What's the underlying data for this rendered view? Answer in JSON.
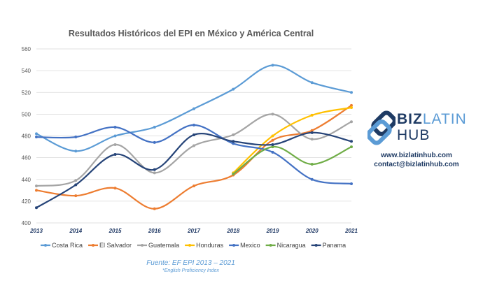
{
  "chart_data": {
    "type": "line",
    "title": "Resultados Históricos del EPI en México y América Central",
    "xlabel": "",
    "ylabel": "",
    "x": [
      "2013",
      "2014",
      "2015",
      "2016",
      "2017",
      "2018",
      "2019",
      "2020",
      "2021"
    ],
    "ylim": [
      400,
      560
    ],
    "yticks": [
      "400",
      "420",
      "440",
      "460",
      "480",
      "500",
      "520",
      "540",
      "560"
    ],
    "grid": true,
    "legend_position": "bottom",
    "series": [
      {
        "name": "Costa Rica",
        "color": "#5b9bd5",
        "values": [
          482,
          466,
          480,
          488,
          505,
          523,
          545,
          529,
          520
        ]
      },
      {
        "name": "El Salvador",
        "color": "#ed7d31",
        "values": [
          430,
          425,
          432,
          413,
          434,
          444,
          476,
          485,
          508
        ]
      },
      {
        "name": "Guatemala",
        "color": "#a5a5a5",
        "values": [
          434,
          439,
          472,
          446,
          471,
          481,
          500,
          477,
          493
        ]
      },
      {
        "name": "Honduras",
        "color": "#ffc000",
        "values": [
          null,
          null,
          null,
          null,
          null,
          446,
          480,
          499,
          506
        ]
      },
      {
        "name": "Mexico",
        "color": "#4472c4",
        "values": [
          479,
          479,
          488,
          474,
          490,
          473,
          465,
          440,
          436
        ]
      },
      {
        "name": "Nicaragua",
        "color": "#70ad47",
        "values": [
          null,
          null,
          null,
          null,
          null,
          445,
          470,
          454,
          470
        ]
      },
      {
        "name": "Panama",
        "color": "#264478",
        "values": [
          414,
          435,
          463,
          449,
          481,
          475,
          472,
          483,
          475
        ]
      }
    ]
  },
  "source": {
    "main": "Fuente: EF EPI 2013 – 2021",
    "note": "*English Proficiency Index"
  },
  "brand": {
    "name_bold": "BIZ",
    "name_light": "LATIN",
    "name_second": "HUB",
    "website": "www.bizlatinhub.com",
    "email": "contact@bizlatinhub.com",
    "primary_color": "#1f3b64",
    "accent_color": "#5b9bd5"
  }
}
